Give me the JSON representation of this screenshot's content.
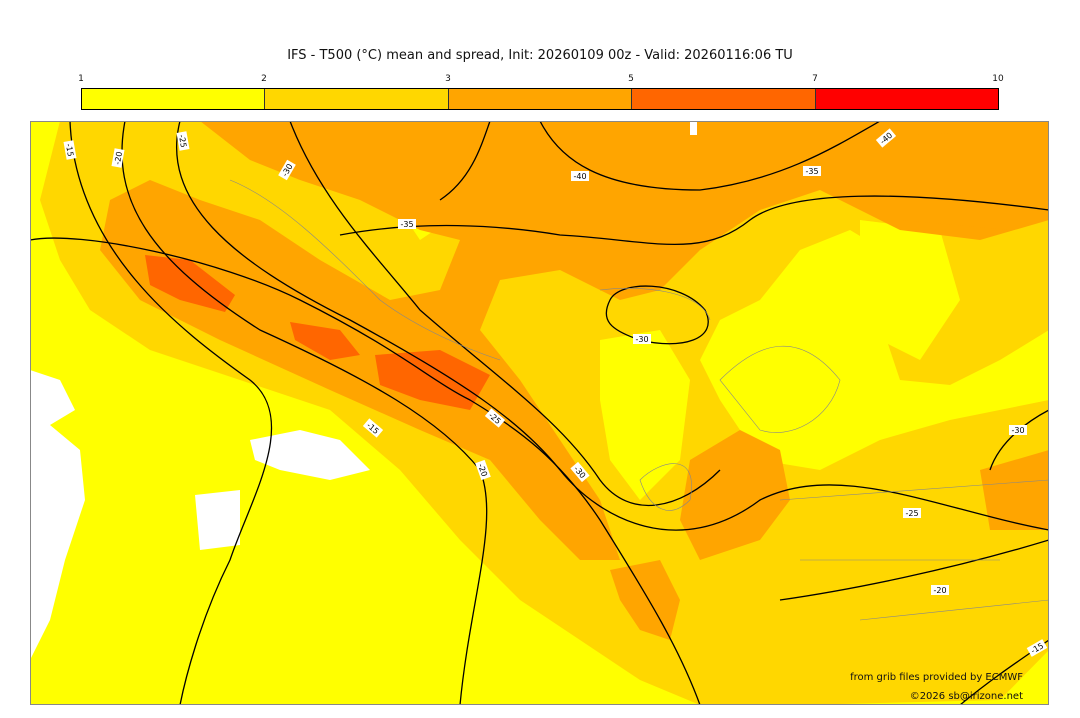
{
  "title": "IFS - T500 (°C) mean and spread, Init: 20260109 00z - Valid: 20260116:06 TU",
  "colorbar": {
    "ticks": [
      "1",
      "2",
      "3",
      "5",
      "7",
      "10"
    ],
    "colors": [
      "#ffff00",
      "#ffd700",
      "#ffa500",
      "#ff6600",
      "#ff0000"
    ]
  },
  "contours": {
    "labels": [
      "-15",
      "-20",
      "-25",
      "-30",
      "-35",
      "-40",
      "-35",
      "-30",
      "-25",
      "-20",
      "-15",
      "-25",
      "-30",
      "-20",
      "-15",
      "-40",
      "-35",
      "-30",
      "-25",
      "-20",
      "-15"
    ]
  },
  "credits": {
    "source": "from grib files provided by ECMWF",
    "copyright": "©2026 sb@irizone.net"
  }
}
